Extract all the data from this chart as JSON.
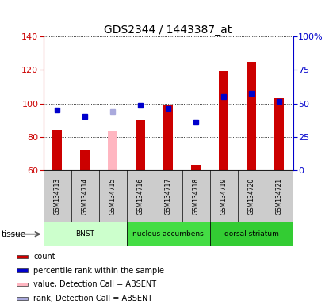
{
  "title": "GDS2344 / 1443387_at",
  "samples": [
    "GSM134713",
    "GSM134714",
    "GSM134715",
    "GSM134716",
    "GSM134717",
    "GSM134718",
    "GSM134719",
    "GSM134720",
    "GSM134721"
  ],
  "counts": [
    84,
    72,
    83,
    90,
    99,
    63,
    119,
    125,
    103
  ],
  "ranks": [
    96,
    92,
    95,
    99,
    97,
    89,
    104,
    106,
    101
  ],
  "absent": [
    false,
    false,
    true,
    false,
    false,
    false,
    false,
    false,
    false
  ],
  "ylim_left": [
    60,
    140
  ],
  "ylim_right": [
    0,
    100
  ],
  "yticks_left": [
    60,
    80,
    100,
    120,
    140
  ],
  "yticks_right": [
    0,
    25,
    50,
    75,
    100
  ],
  "ytick_labels_right": [
    "0",
    "25",
    "50",
    "75",
    "100%"
  ],
  "tissues": [
    {
      "label": "BNST",
      "start": 0,
      "end": 3,
      "color": "#CCFFCC"
    },
    {
      "label": "nucleus accumbens",
      "start": 3,
      "end": 6,
      "color": "#44DD44"
    },
    {
      "label": "dorsal striatum",
      "start": 6,
      "end": 9,
      "color": "#33CC33"
    }
  ],
  "tissue_label": "tissue",
  "bar_color": "#CC0000",
  "bar_absent_color": "#FFB6C1",
  "rank_color": "#0000CC",
  "rank_absent_color": "#AAAADD",
  "bar_width": 0.35,
  "rank_marker_size": 5,
  "left_axis_color": "#CC0000",
  "right_axis_color": "#0000CC",
  "legend_items": [
    {
      "color": "#CC0000",
      "label": "count"
    },
    {
      "color": "#0000CC",
      "label": "percentile rank within the sample"
    },
    {
      "color": "#FFB6C1",
      "label": "value, Detection Call = ABSENT"
    },
    {
      "color": "#AAAADD",
      "label": "rank, Detection Call = ABSENT"
    }
  ]
}
